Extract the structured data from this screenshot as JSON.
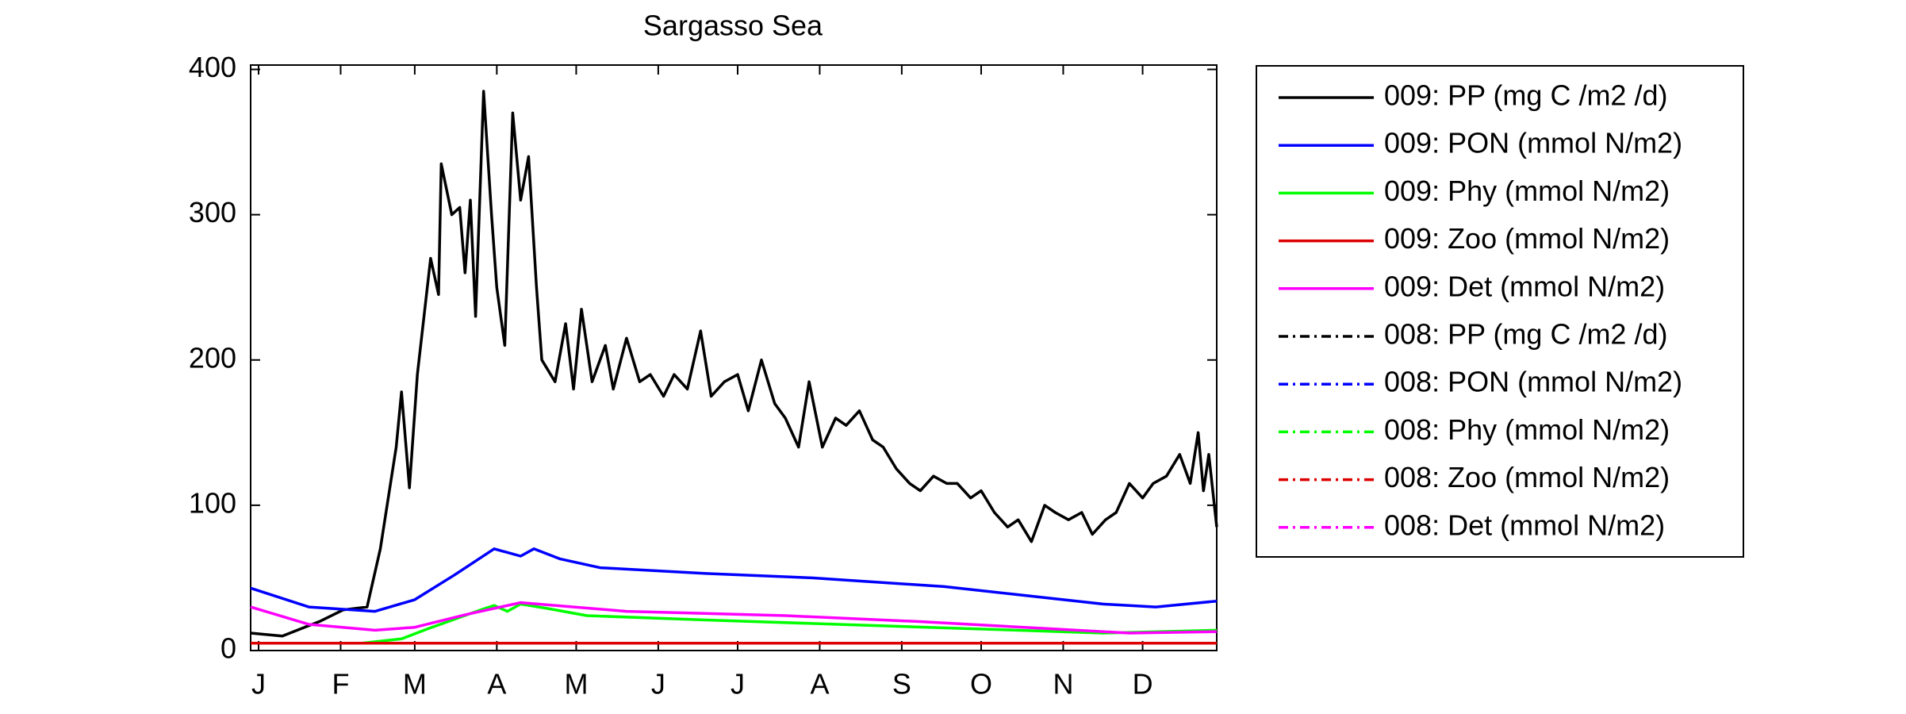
{
  "chart_data": {
    "type": "line",
    "title": "Sargasso Sea",
    "xlim": [
      -2,
      363
    ],
    "ylim": [
      0,
      403
    ],
    "xticks": [
      {
        "value": 1,
        "label": "J"
      },
      {
        "value": 32,
        "label": "F"
      },
      {
        "value": 60,
        "label": "M"
      },
      {
        "value": 91,
        "label": "A"
      },
      {
        "value": 121,
        "label": "M"
      },
      {
        "value": 152,
        "label": "J"
      },
      {
        "value": 182,
        "label": "J"
      },
      {
        "value": 213,
        "label": "A"
      },
      {
        "value": 244,
        "label": "S"
      },
      {
        "value": 274,
        "label": "O"
      },
      {
        "value": 305,
        "label": "N"
      },
      {
        "value": 335,
        "label": "D"
      }
    ],
    "yticks": [
      0,
      100,
      200,
      300,
      400
    ],
    "series": [
      {
        "name": "009: PP (mg C /m2 /d)",
        "color": "#000000",
        "dash": "solid",
        "x": [
          -2,
          10,
          24,
          33,
          42,
          47,
          53,
          55,
          58,
          61,
          66,
          69,
          70,
          74,
          77,
          79,
          81,
          83,
          86,
          89,
          91,
          94,
          97,
          100,
          103,
          106,
          108,
          113,
          117,
          120,
          123,
          127,
          132,
          135,
          140,
          145,
          149,
          154,
          158,
          163,
          168,
          172,
          177,
          182,
          186,
          191,
          196,
          200,
          205,
          209,
          214,
          219,
          223,
          228,
          233,
          237,
          242,
          247,
          251,
          256,
          261,
          265,
          270,
          274,
          279,
          284,
          288,
          293,
          298,
          302,
          307,
          312,
          316,
          321,
          325,
          330,
          335,
          339,
          344,
          349,
          353,
          356,
          358,
          360,
          363
        ],
        "values": [
          12,
          10,
          20,
          28,
          30,
          70,
          140,
          178,
          112,
          190,
          270,
          245,
          335,
          300,
          305,
          260,
          310,
          230,
          385,
          300,
          250,
          210,
          370,
          310,
          340,
          250,
          200,
          185,
          225,
          180,
          235,
          185,
          210,
          180,
          215,
          185,
          190,
          175,
          190,
          180,
          220,
          175,
          185,
          190,
          165,
          200,
          170,
          160,
          140,
          185,
          140,
          160,
          155,
          165,
          145,
          140,
          125,
          115,
          110,
          120,
          115,
          115,
          105,
          110,
          95,
          85,
          90,
          75,
          100,
          95,
          90,
          95,
          80,
          90,
          95,
          115,
          105,
          115,
          120,
          135,
          115,
          150,
          110,
          135,
          85
        ]
      },
      {
        "name": "009: PON (mmol N/m2)",
        "color": "#0000ff",
        "dash": "solid",
        "x": [
          -2,
          20,
          45,
          60,
          75,
          90,
          100,
          105,
          115,
          130,
          170,
          210,
          260,
          290,
          320,
          340,
          363
        ],
        "values": [
          43,
          30,
          27,
          35,
          52,
          70,
          65,
          70,
          63,
          57,
          53,
          50,
          44,
          38,
          32,
          30,
          34
        ]
      },
      {
        "name": "009: Phy (mmol N/m2)",
        "color": "#00ff00",
        "dash": "solid",
        "x": [
          -2,
          40,
          55,
          65,
          85,
          90,
          95,
          100,
          110,
          125,
          170,
          220,
          270,
          320,
          363
        ],
        "values": [
          5,
          5,
          8,
          15,
          28,
          31,
          27,
          32,
          29,
          24,
          21,
          18,
          15,
          12,
          14
        ]
      },
      {
        "name": "009: Zoo (mmol N/m2)",
        "color": "#dd0000",
        "dash": "solid",
        "x": [
          -2,
          363
        ],
        "values": [
          5,
          5
        ]
      },
      {
        "name": "009: Det (mmol N/m2)",
        "color": "#ff00ff",
        "dash": "solid",
        "x": [
          -2,
          20,
          45,
          60,
          80,
          100,
          140,
          200,
          250,
          300,
          330,
          363
        ],
        "values": [
          30,
          18,
          14,
          16,
          25,
          33,
          27,
          24,
          20,
          15,
          12,
          13
        ]
      },
      {
        "name": "008: PP (mg C /m2 /d)",
        "color": "#000000",
        "dash": "dashdot",
        "x": [],
        "values": []
      },
      {
        "name": "008: PON (mmol N/m2)",
        "color": "#0000ff",
        "dash": "dashdot",
        "x": [],
        "values": []
      },
      {
        "name": "008: Phy (mmol N/m2)",
        "color": "#00ff00",
        "dash": "dashdot",
        "x": [],
        "values": []
      },
      {
        "name": "008: Zoo (mmol N/m2)",
        "color": "#dd0000",
        "dash": "dashdot",
        "x": [],
        "values": []
      },
      {
        "name": "008: Det (mmol N/m2)",
        "color": "#ff00ff",
        "dash": "dashdot",
        "x": [],
        "values": []
      }
    ]
  }
}
